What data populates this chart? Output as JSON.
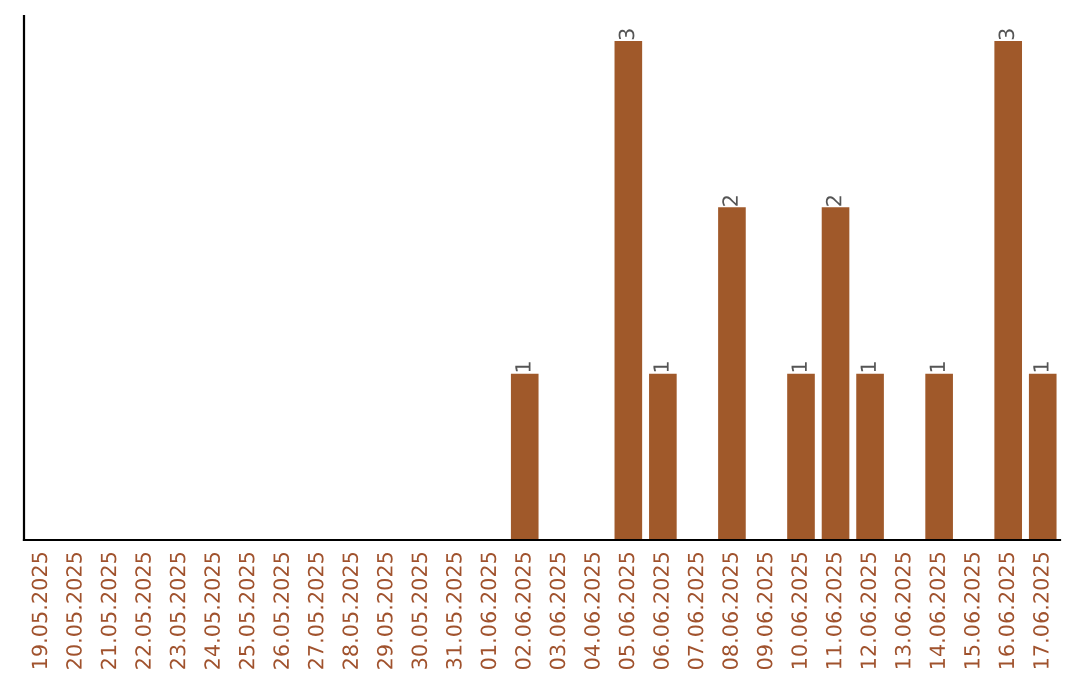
{
  "chart_data": {
    "type": "bar",
    "categories": [
      "19.05.2025",
      "20.05.2025",
      "21.05.2025",
      "22.05.2025",
      "23.05.2025",
      "24.05.2025",
      "25.05.2025",
      "26.05.2025",
      "27.05.2025",
      "28.05.2025",
      "29.05.2025",
      "30.05.2025",
      "31.05.2025",
      "01.06.2025",
      "02.06.2025",
      "03.06.2025",
      "04.06.2025",
      "05.06.2025",
      "06.06.2025",
      "07.06.2025",
      "08.06.2025",
      "09.06.2025",
      "10.06.2025",
      "11.06.2025",
      "12.06.2025",
      "13.06.2025",
      "14.06.2025",
      "15.06.2025",
      "16.06.2025",
      "17.06.2025"
    ],
    "values": [
      null,
      null,
      null,
      null,
      null,
      null,
      null,
      null,
      null,
      null,
      null,
      null,
      null,
      null,
      1,
      null,
      null,
      3,
      1,
      null,
      2,
      null,
      1,
      2,
      1,
      null,
      1,
      null,
      3,
      1
    ],
    "value_labels": [
      null,
      null,
      null,
      null,
      null,
      null,
      null,
      null,
      null,
      null,
      null,
      null,
      null,
      null,
      "1",
      null,
      null,
      "3",
      "1",
      null,
      "2",
      null,
      "1",
      "2",
      "1",
      null,
      "1",
      null,
      "3",
      "1"
    ],
    "color": "#a0592a",
    "grid": false,
    "legend": false
  }
}
